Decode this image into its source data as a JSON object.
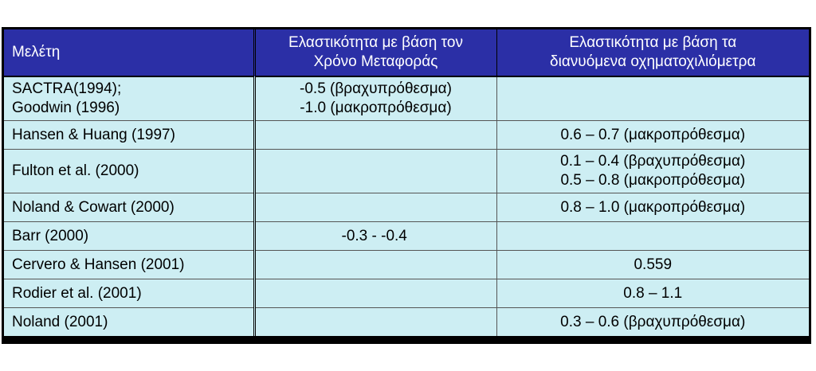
{
  "table": {
    "headers": [
      "Μελέτη",
      [
        "Ελαστικότητα με βάση τον",
        "Χρόνο Μεταφοράς"
      ],
      [
        "Ελαστικότητα με βάση τα",
        "διανυόμενα οχηματοχιλιόμετρα"
      ]
    ],
    "rows": [
      {
        "study": [
          "SACTRA(1994);",
          "Goodwin (1996)"
        ],
        "time": [
          "-0.5 (βραχυπρόθεσμα)",
          "-1.0 (μακροπρόθεσμα)"
        ],
        "vkm": []
      },
      {
        "study": [
          "Hansen & Huang (1997)"
        ],
        "time": [],
        "vkm": [
          "0.6 – 0.7 (μακροπρόθεσμα)"
        ]
      },
      {
        "study": [
          "Fulton et al. (2000)"
        ],
        "time": [],
        "vkm": [
          "0.1 – 0.4 (βραχυπρόθεσμα)",
          "0.5 – 0.8 (μακροπρόθεσμα)"
        ]
      },
      {
        "study": [
          "Noland & Cowart (2000)"
        ],
        "time": [],
        "vkm": [
          "0.8 – 1.0 (μακροπρόθεσμα)"
        ]
      },
      {
        "study": [
          "Barr (2000)"
        ],
        "time": [
          "-0.3 - -0.4"
        ],
        "vkm": []
      },
      {
        "study": [
          "Cervero & Hansen (2001)"
        ],
        "time": [],
        "vkm": [
          "0.559"
        ]
      },
      {
        "study": [
          "Rodier et al. (2001)"
        ],
        "time": [],
        "vkm": [
          "0.8 – 1.1"
        ]
      },
      {
        "study": [
          "Noland (2001)"
        ],
        "time": [],
        "vkm": [
          "0.3 – 0.6 (βραχυπρόθεσμα)"
        ]
      }
    ]
  }
}
